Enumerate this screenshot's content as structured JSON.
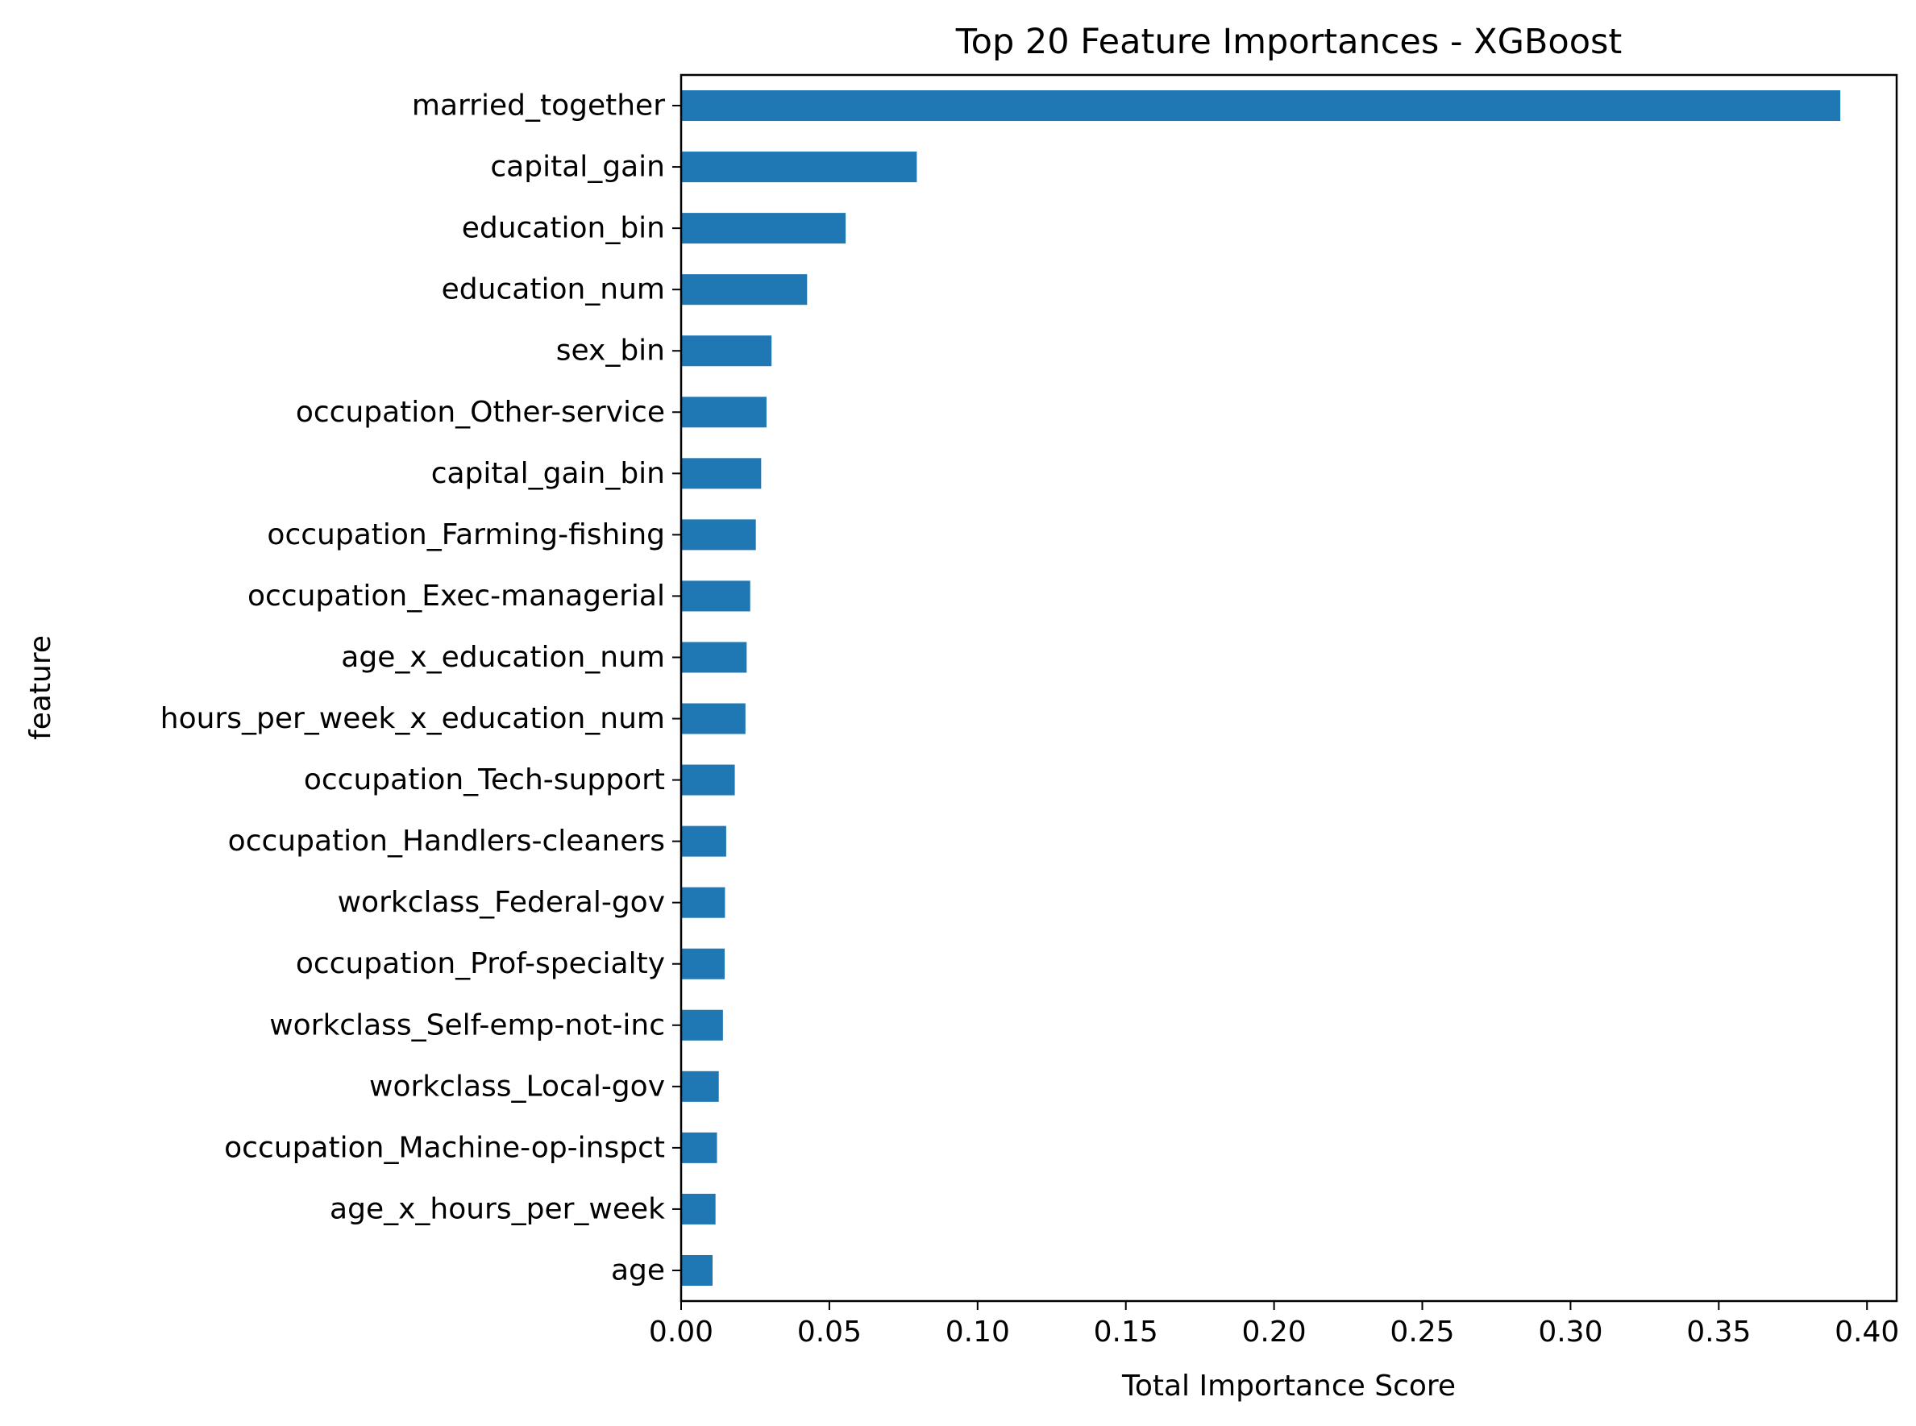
{
  "chart_data": {
    "type": "bar",
    "orientation": "horizontal",
    "title": "Top 20 Feature Importances - XGBoost",
    "xlabel": "Total Importance Score",
    "ylabel": "feature",
    "xlim": [
      0,
      0.41
    ],
    "xticks": [
      0.0,
      0.05,
      0.1,
      0.15,
      0.2,
      0.25,
      0.3,
      0.35,
      0.4
    ],
    "xtick_labels": [
      "0.00",
      "0.05",
      "0.10",
      "0.15",
      "0.20",
      "0.25",
      "0.30",
      "0.35",
      "0.40"
    ],
    "grid": false,
    "bar_color": "#1f77b4",
    "categories": [
      "married_together",
      "capital_gain",
      "education_bin",
      "education_num",
      "sex_bin",
      "occupation_Other-service",
      "capital_gain_bin",
      "occupation_Farming-fishing",
      "occupation_Exec-managerial",
      "age_x_education_num",
      "hours_per_week_x_education_num",
      "occupation_Tech-support",
      "occupation_Handlers-cleaners",
      "workclass_Federal-gov",
      "occupation_Prof-specialty",
      "workclass_Self-emp-not-inc",
      "workclass_Local-gov",
      "occupation_Machine-op-inspct",
      "age_x_hours_per_week",
      "age"
    ],
    "values": [
      0.391,
      0.0795,
      0.0555,
      0.0425,
      0.0305,
      0.0288,
      0.027,
      0.0252,
      0.0233,
      0.0221,
      0.0217,
      0.0181,
      0.0152,
      0.0148,
      0.0147,
      0.0141,
      0.0127,
      0.0121,
      0.0116,
      0.0106
    ]
  }
}
